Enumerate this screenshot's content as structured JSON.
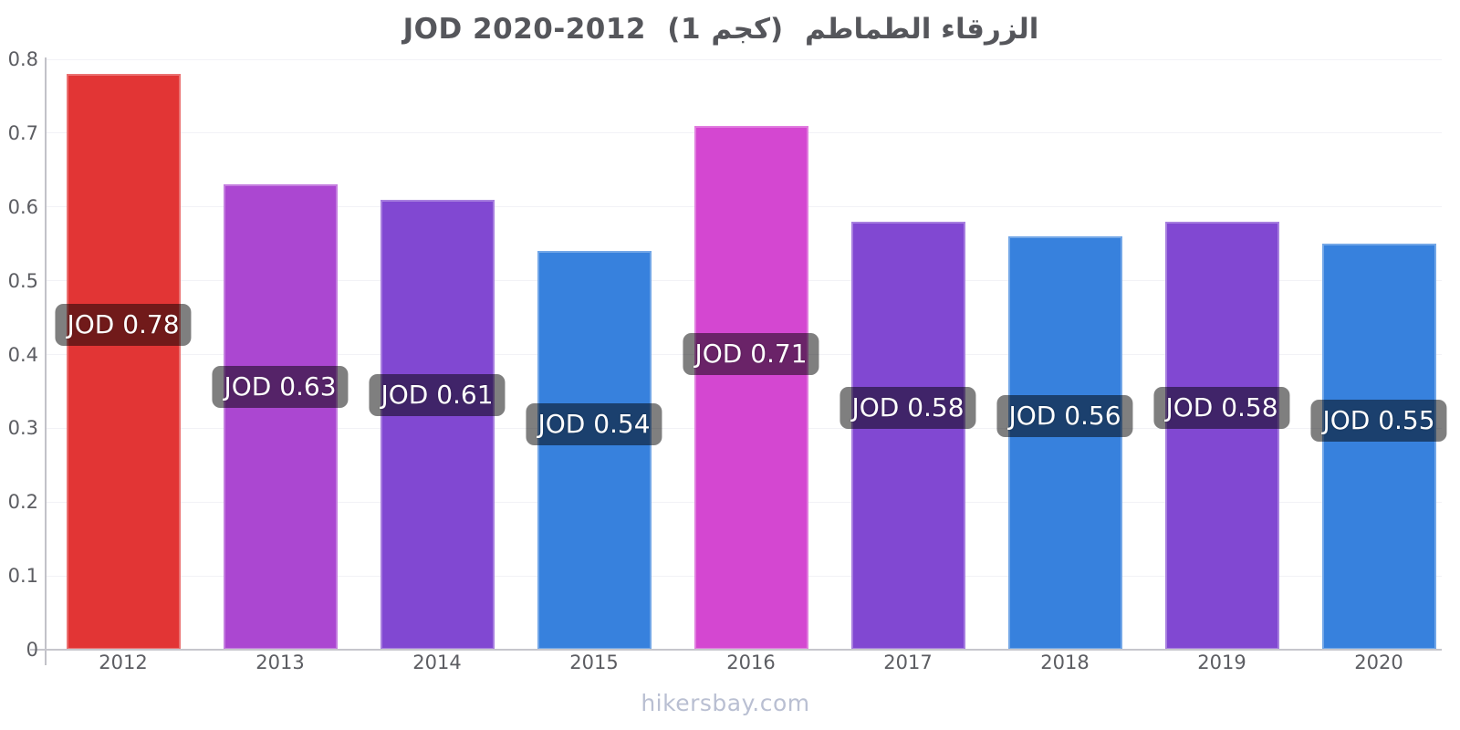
{
  "title": {
    "latin": "JOD 2020-2012",
    "unit": "(1 كجم)",
    "arabic": "الزرقاء الطماطم",
    "full": "الزرقاء الطماطم (1 كجم) 2012-2020 JOD"
  },
  "footer": {
    "site": "hikersbay.com"
  },
  "colors": {
    "red": "#e23535",
    "light_purple": "#ab47d1",
    "purple": "#8148d2",
    "blue": "#3781dd",
    "magenta": "#d447d1",
    "label_background": "rgba(0,0,0,0.5)",
    "label_text": "#ffffff",
    "axis": "#c6c6cc",
    "tick_text": "#5c5d62",
    "title_text": "#55565b",
    "footer_text": "#b9bfd2"
  },
  "chart_data": {
    "type": "bar",
    "title": "الزرقاء الطماطم (1 كجم) 2012-2020 JOD",
    "xlabel": "",
    "ylabel": "",
    "categories": [
      "2012",
      "2013",
      "2014",
      "2015",
      "2016",
      "2017",
      "2018",
      "2019",
      "2020"
    ],
    "values": [
      0.78,
      0.63,
      0.61,
      0.54,
      0.71,
      0.58,
      0.56,
      0.58,
      0.55
    ],
    "bar_labels": [
      "JOD 0.78",
      "JOD 0.63",
      "JOD 0.61",
      "JOD 0.54",
      "JOD 0.71",
      "JOD 0.58",
      "JOD 0.56",
      "JOD 0.58",
      "JOD 0.55"
    ],
    "bar_colors": [
      "#e23535",
      "#ab47d1",
      "#8148d2",
      "#3781dd",
      "#d447d1",
      "#8148d2",
      "#3781dd",
      "#8148d2",
      "#3781dd"
    ],
    "currency": "JOD",
    "ylim": [
      0,
      0.8
    ],
    "yticks": [
      0,
      0.1,
      0.2,
      0.3,
      0.4,
      0.5,
      0.6,
      0.7,
      0.8
    ],
    "ytick_labels": [
      "0",
      "0.1",
      "0.2",
      "0.3",
      "0.4",
      "0.5",
      "0.6",
      "0.7",
      "0.8"
    ],
    "grid": true,
    "legend": false
  }
}
